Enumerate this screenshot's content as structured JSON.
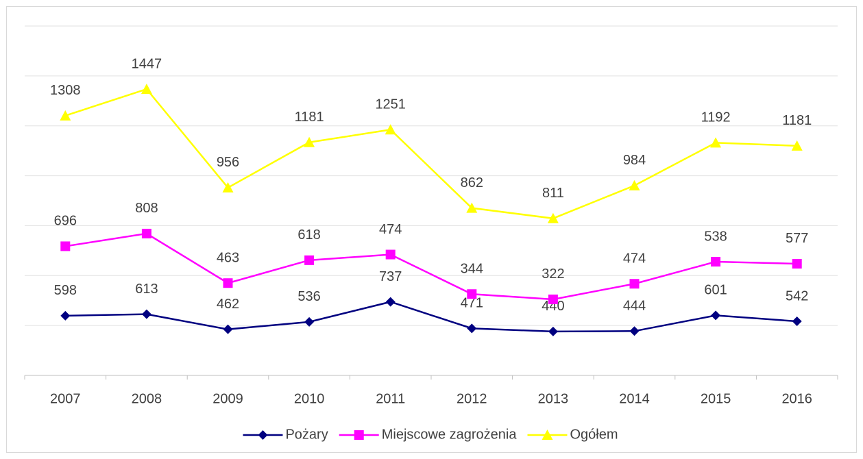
{
  "chart_data": {
    "type": "stacked_line",
    "categories": [
      "2007",
      "2008",
      "2009",
      "2010",
      "2011",
      "2012",
      "2013",
      "2014",
      "2015",
      "2016"
    ],
    "series": [
      {
        "name": "Pożary",
        "color": "#000080",
        "marker": "diamond",
        "values": [
          598,
          613,
          462,
          536,
          737,
          471,
          440,
          444,
          601,
          542
        ]
      },
      {
        "name": "Miejscowe zagrożenia",
        "color": "#ff00ff",
        "marker": "square",
        "values": [
          696,
          808,
          463,
          618,
          474,
          344,
          322,
          474,
          538,
          577
        ]
      },
      {
        "name": "Ogółem",
        "color": "#ffff00",
        "marker": "triangle",
        "values": [
          1308,
          1447,
          956,
          1181,
          1251,
          862,
          811,
          984,
          1192,
          1181
        ]
      }
    ],
    "ylim": [
      0,
      3500
    ],
    "yticks": [
      0,
      500,
      1000,
      1500,
      2000,
      2500,
      3000,
      3500
    ],
    "grid": true,
    "legend": "bottom"
  }
}
